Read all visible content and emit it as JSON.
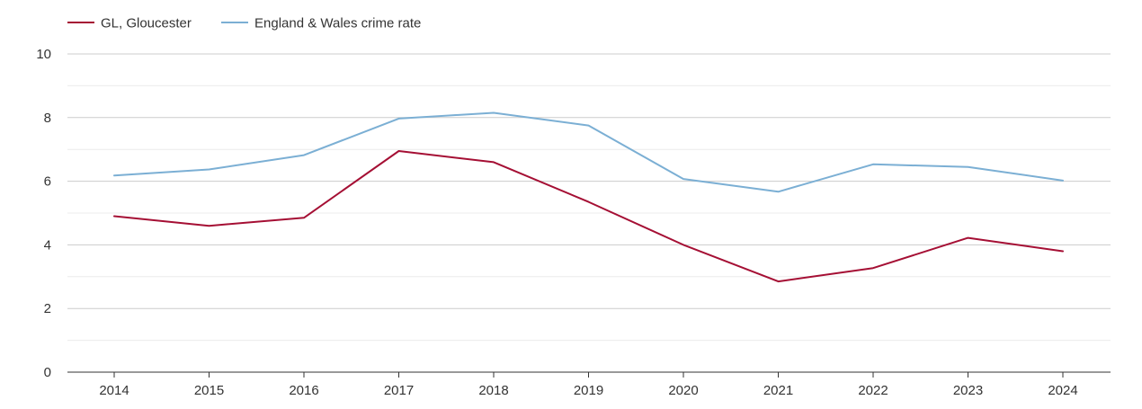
{
  "chart_data": {
    "type": "line",
    "title": "",
    "xlabel": "",
    "ylabel": "",
    "x": [
      "2014",
      "2015",
      "2016",
      "2017",
      "2018",
      "2019",
      "2020",
      "2021",
      "2022",
      "2023",
      "2024"
    ],
    "ylim": [
      0,
      10
    ],
    "yticks": [
      "0",
      "2",
      "4",
      "6",
      "8",
      "10"
    ],
    "grid": true,
    "legend_position": "top-left",
    "series": [
      {
        "name": "GL, Gloucester",
        "color": "#a50f34",
        "values": [
          4.9,
          4.6,
          4.85,
          6.95,
          6.6,
          5.35,
          4.0,
          2.85,
          3.27,
          4.22,
          3.8
        ]
      },
      {
        "name": "England & Wales crime rate",
        "color": "#7bafd4",
        "values": [
          6.18,
          6.37,
          6.82,
          7.97,
          8.15,
          7.75,
          6.07,
          5.67,
          6.53,
          6.45,
          6.02
        ]
      }
    ]
  }
}
